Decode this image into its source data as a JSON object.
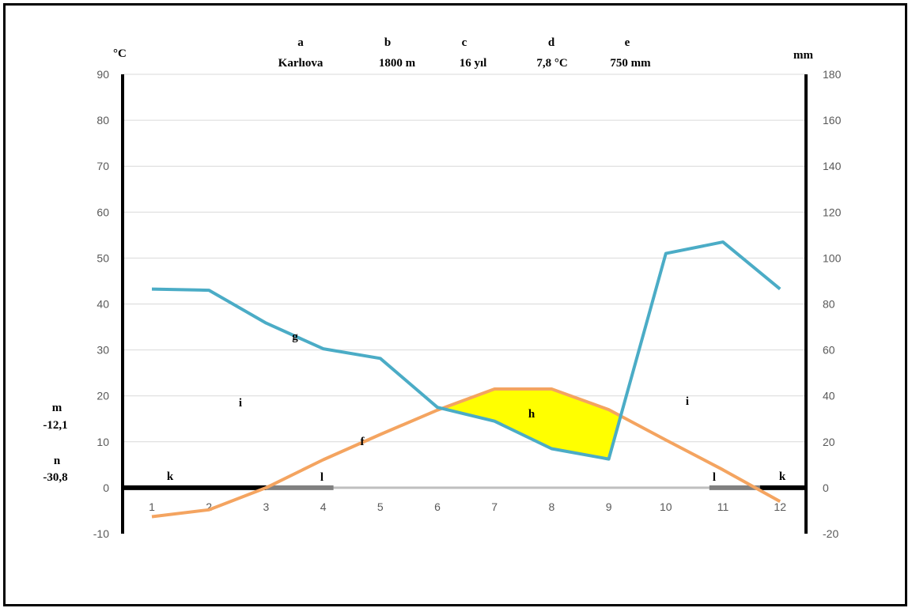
{
  "chart_data": {
    "type": "line",
    "header_letters": [
      "a",
      "b",
      "c",
      "d",
      "e"
    ],
    "header_values": [
      "Karlıova",
      "1800 m",
      "16 yıl",
      "7,8 °C",
      "750 mm"
    ],
    "left_unit": "°C",
    "right_unit": "mm",
    "left_ylim": [
      -10,
      90
    ],
    "left_ticks": [
      "90",
      "80",
      "70",
      "60",
      "50",
      "40",
      "30",
      "20",
      "10",
      "0",
      "-10"
    ],
    "right_ylim": [
      -20,
      180
    ],
    "right_ticks": [
      "180",
      "160",
      "140",
      "120",
      "100",
      "80",
      "60",
      "40",
      "20",
      "0",
      "-20"
    ],
    "x": [
      "1",
      "2",
      "3",
      "4",
      "5",
      "6",
      "7",
      "8",
      "9",
      "10",
      "11",
      "12"
    ],
    "series": [
      {
        "name": "f",
        "axis": "left",
        "color": "#F4A460",
        "values": [
          -6.3,
          -4.8,
          0,
          6.1,
          11.6,
          16.9,
          21.5,
          21.5,
          17.0,
          10.4,
          3.9,
          -3.0
        ]
      },
      {
        "name": "g",
        "axis": "right",
        "color": "#4BACC6",
        "values": [
          86.5,
          86.0,
          71.7,
          60.5,
          56.3,
          35.0,
          29.0,
          17.0,
          12.5,
          102.0,
          107.0,
          86.5
        ]
      }
    ],
    "annotations": {
      "g": "g",
      "f": "f",
      "h": "h",
      "i_left": "i",
      "i_right": "i",
      "k_left": "k",
      "k_right": "k",
      "l_left": "l",
      "l_right": "l",
      "m_label": "m",
      "m_value": "-12,1",
      "n_label": "n",
      "n_value": "-30,8"
    },
    "dry_period_color": "#FFFF00",
    "frost_bar_color": "#000000",
    "transition_bar_color": "#808080",
    "baseline_color": "#BFBFBF",
    "grid": true
  }
}
